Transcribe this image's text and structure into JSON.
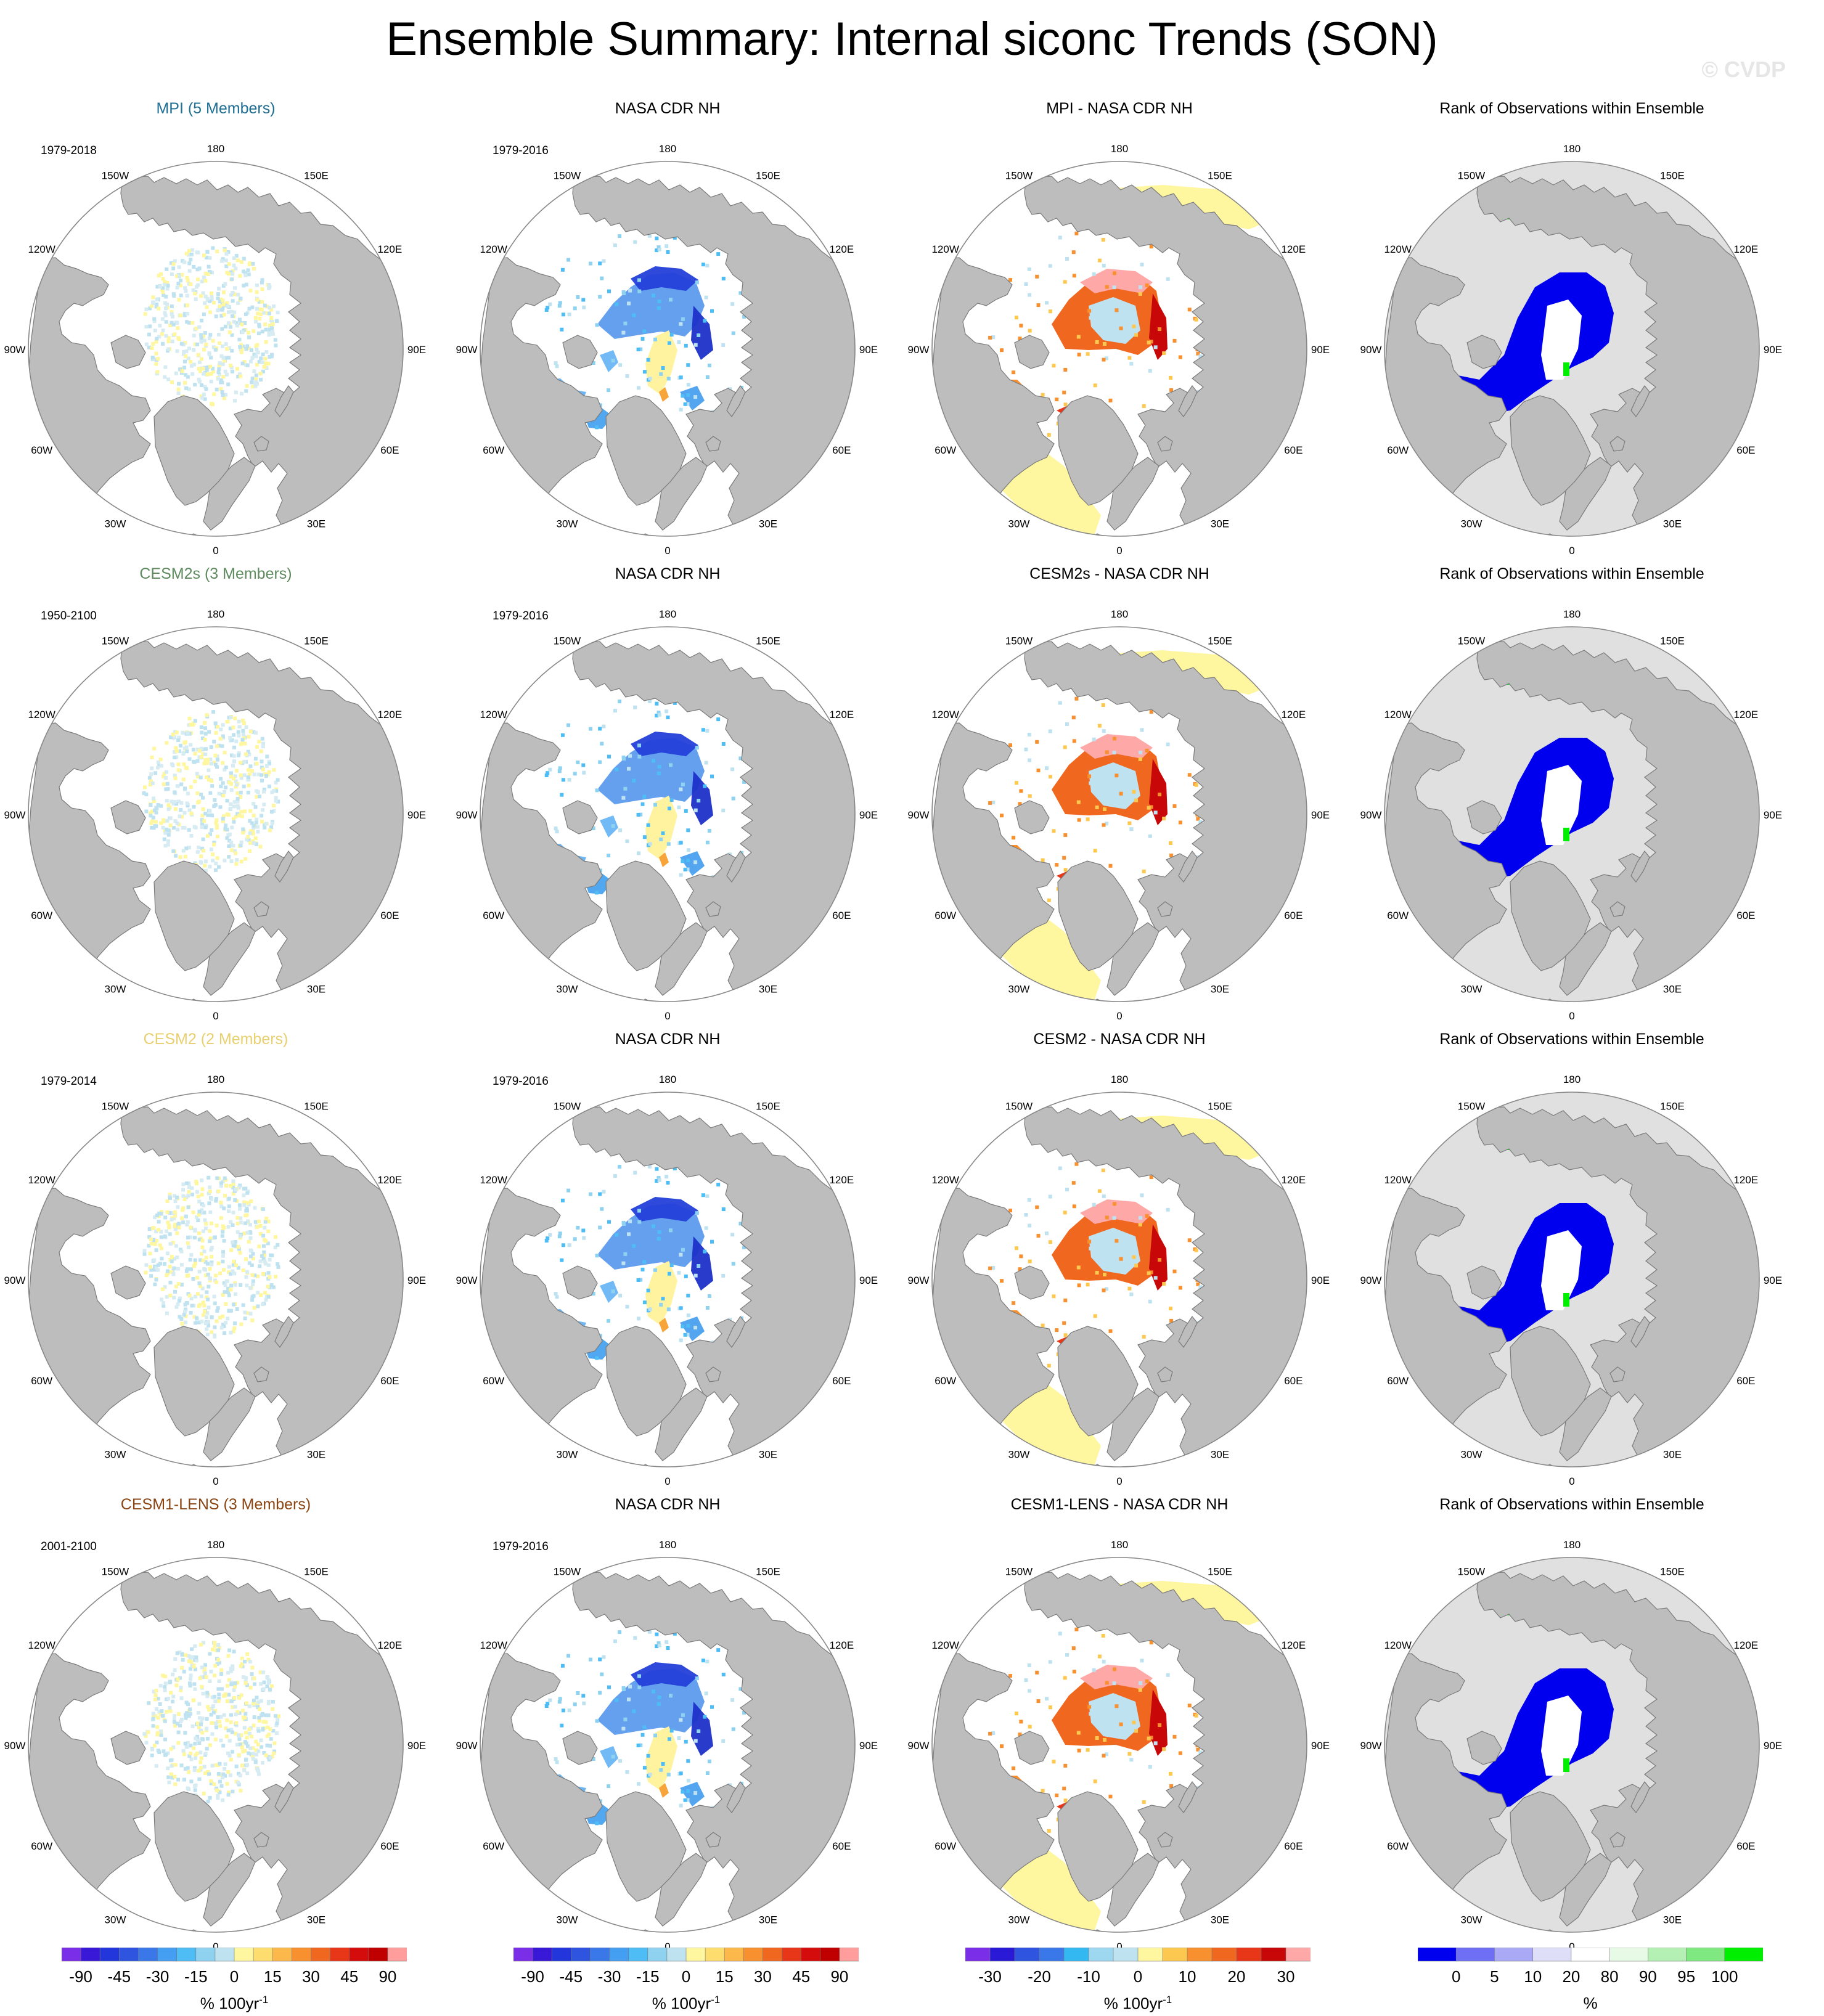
{
  "title": "Ensemble Summary: Internal siconc Trends (SON)",
  "watermark": "© CVDP",
  "longitude_labels": [
    "180",
    "150E",
    "120E",
    "90E",
    "60E",
    "30E",
    "0",
    "30W",
    "60W",
    "90W",
    "120W",
    "150W"
  ],
  "rows": [
    {
      "model_title": "MPI (5 Members)",
      "model_years": "1979-2018",
      "model_title_color": "#1f6f94",
      "obs_title": "NASA CDR NH",
      "obs_years": "1979-2016",
      "diff_title": "MPI - NASA CDR NH",
      "rank_title": "Rank of Observations within Ensemble"
    },
    {
      "model_title": "CESM2s (3 Members)",
      "model_years": "1950-2100",
      "model_title_color": "#5f8a5f",
      "obs_title": "NASA CDR NH",
      "obs_years": "1979-2016",
      "diff_title": "CESM2s - NASA CDR NH",
      "rank_title": "Rank of Observations within Ensemble"
    },
    {
      "model_title": "CESM2 (2 Members)",
      "model_years": "1979-2014",
      "model_title_color": "#e8d070",
      "obs_title": "NASA CDR NH",
      "obs_years": "1979-2016",
      "diff_title": "CESM2 - NASA CDR NH",
      "rank_title": "Rank of Observations within Ensemble"
    },
    {
      "model_title": "CESM1-LENS (3 Members)",
      "model_years": "2001-2100",
      "model_title_color": "#8b4513",
      "obs_title": "NASA CDR NH",
      "obs_years": "1979-2016",
      "diff_title": "CESM1-LENS - NASA CDR NH",
      "rank_title": "Rank of Observations within Ensemble"
    }
  ],
  "colorbars": {
    "trend": {
      "unit": "% 100yr",
      "unit_exponent": "-1",
      "labels": [
        "-90",
        "-45",
        "-30",
        "-15",
        "0",
        "15",
        "30",
        "45",
        "90"
      ],
      "colors": [
        "#7b2ee8",
        "#3a18d8",
        "#2336dc",
        "#2f55e0",
        "#3a78ea",
        "#449ef2",
        "#4fbdf5",
        "#8fd2f0",
        "#bfe2f0",
        "#fff6a0",
        "#fddd6e",
        "#fcb84a",
        "#f89030",
        "#f06820",
        "#e73618",
        "#d40c0c",
        "#c00000",
        "#ff9c9c"
      ]
    },
    "diff": {
      "unit": "% 100yr",
      "unit_exponent": "-1",
      "labels": [
        "-30",
        "-20",
        "-10",
        "0",
        "10",
        "20",
        "30"
      ],
      "colors": [
        "#7b2ee8",
        "#2a1ad8",
        "#2f55e0",
        "#3a78ea",
        "#33b8f2",
        "#9ed8f0",
        "#bfe2f0",
        "#fff6a0",
        "#fcc850",
        "#f89030",
        "#f06820",
        "#e73618",
        "#c80808",
        "#ffa8a8"
      ]
    },
    "rank": {
      "unit": "%",
      "labels": [
        "0",
        "5",
        "10",
        "20",
        "80",
        "90",
        "95",
        "100"
      ],
      "colors": [
        "#0000ee",
        "#6f6ff5",
        "#a9a9f5",
        "#dedef8",
        "#ffffff",
        "#e6fae6",
        "#b4f0b4",
        "#80e880",
        "#00ee00"
      ]
    }
  }
}
